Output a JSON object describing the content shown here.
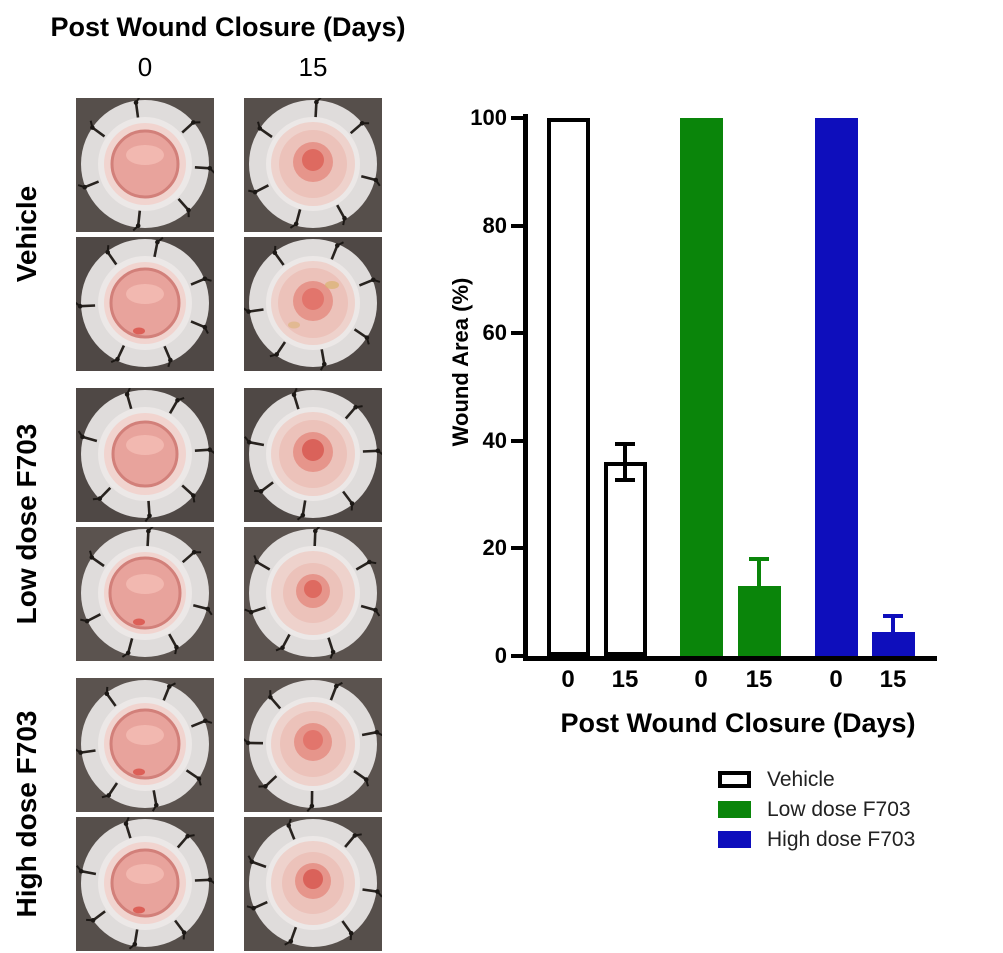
{
  "figure": {
    "photo_panel": {
      "title": "Post Wound Closure (Days)",
      "columns": [
        "0",
        "15"
      ],
      "groups": [
        {
          "label": "Vehicle"
        },
        {
          "label": "Low dose F703"
        },
        {
          "label": "High dose F703"
        }
      ],
      "rows_per_group": 2,
      "photo_description": "circular splinted wound photographs"
    }
  },
  "chart_data": {
    "type": "bar",
    "title": "",
    "xlabel": "Post Wound Closure (Days)",
    "ylabel": "Wound Area (%)",
    "ylim": [
      0,
      100
    ],
    "yticks": [
      0,
      20,
      40,
      60,
      80,
      100
    ],
    "grid": false,
    "series": [
      {
        "name": "Vehicle",
        "fill": "#ffffff",
        "outline": "#000000",
        "bars": [
          {
            "x": "0",
            "value": 100,
            "err": null
          },
          {
            "x": "15",
            "value": 36,
            "err": 3.7,
            "err_style": "both"
          }
        ]
      },
      {
        "name": "Low dose F703",
        "fill": "#0a850a",
        "bars": [
          {
            "x": "0",
            "value": 100,
            "err": null
          },
          {
            "x": "15",
            "value": 13,
            "err": 5.4,
            "err_style": "up"
          }
        ]
      },
      {
        "name": "High dose F703",
        "fill": "#0e0ebc",
        "bars": [
          {
            "x": "0",
            "value": 100,
            "err": null
          },
          {
            "x": "15",
            "value": 4.4,
            "err": 3.4,
            "err_style": "up"
          }
        ]
      }
    ],
    "legend": {
      "position": "bottom-right",
      "entries": [
        {
          "label": "Vehicle",
          "fill": "#ffffff",
          "outline": "#000000"
        },
        {
          "label": "Low dose F703",
          "fill": "#0a850a"
        },
        {
          "label": "High dose F703",
          "fill": "#0e0ebc"
        }
      ]
    }
  }
}
